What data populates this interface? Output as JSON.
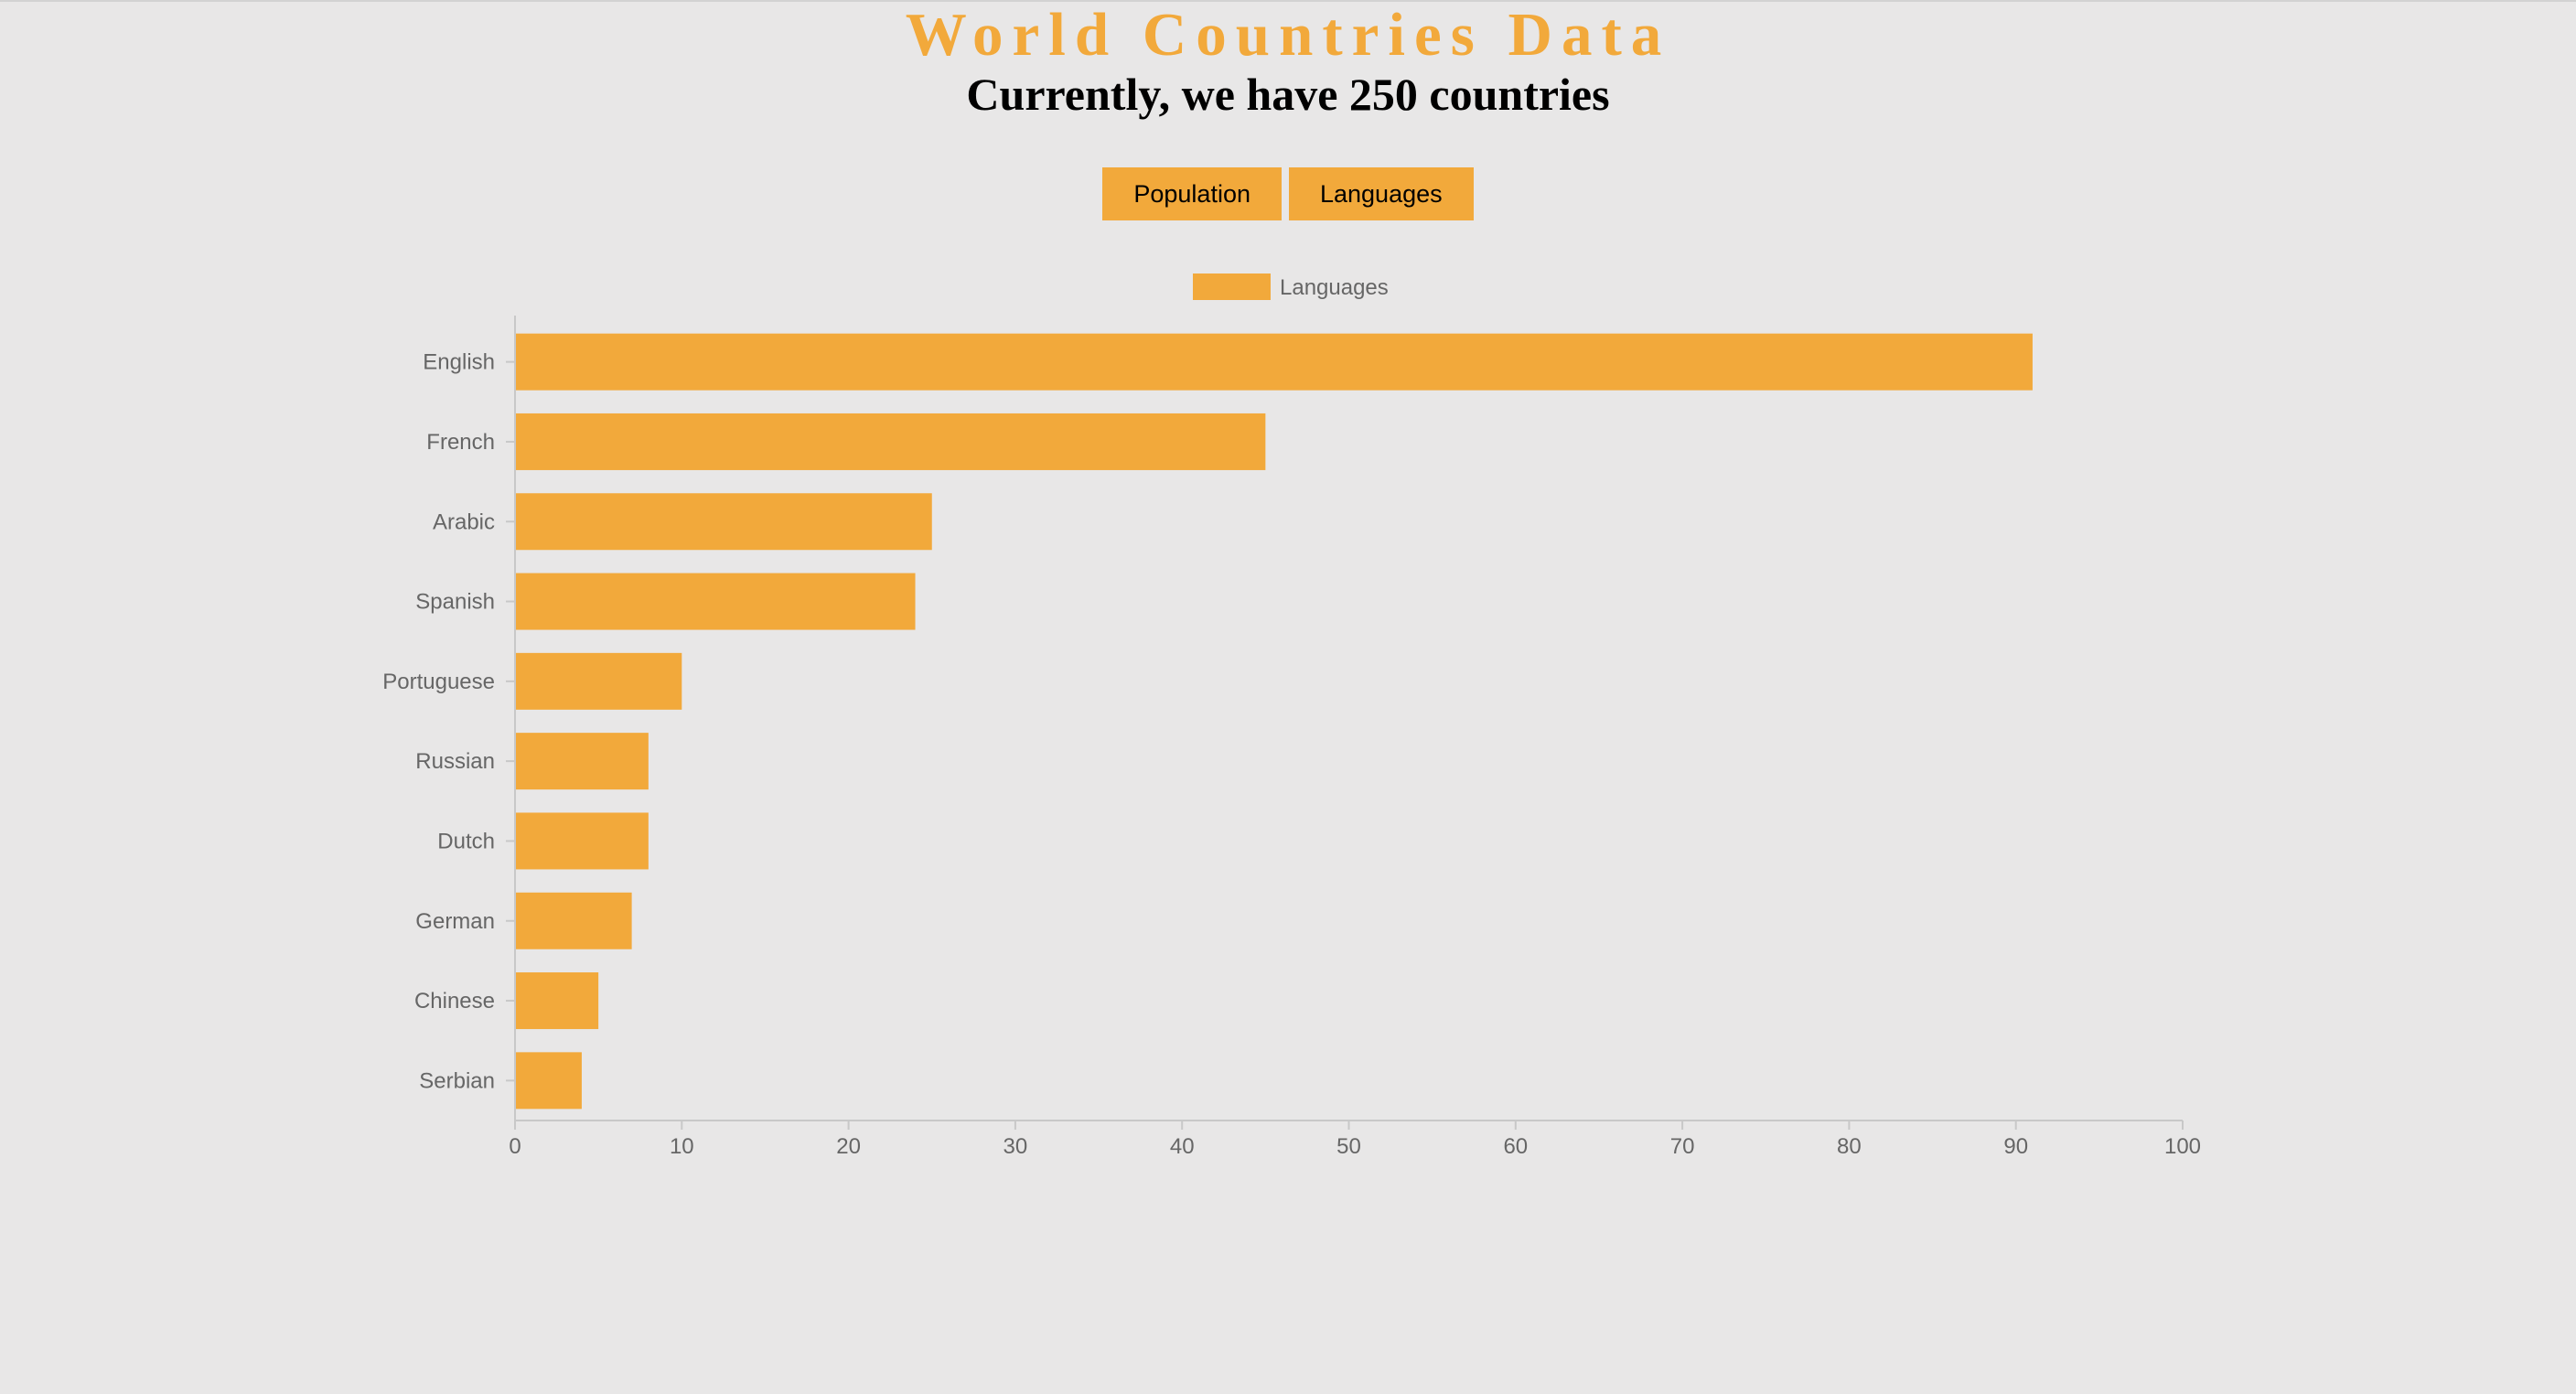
{
  "page": {
    "title": "World Countries Data",
    "subtitle": "Currently, we have 250 countries"
  },
  "buttons": {
    "population_label": "Population",
    "languages_label": "Languages"
  },
  "colors": {
    "accent": "#f2a93b",
    "background": "#e8e7e7",
    "axis_text": "#666666",
    "axis_line": "#c8c8c8"
  },
  "chart_data": {
    "type": "bar",
    "orientation": "horizontal",
    "title": "",
    "xlabel": "",
    "ylabel": "",
    "categories": [
      "English",
      "French",
      "Arabic",
      "Spanish",
      "Portuguese",
      "Russian",
      "Dutch",
      "German",
      "Chinese",
      "Serbian"
    ],
    "series": [
      {
        "name": "Languages",
        "values": [
          91,
          45,
          25,
          24,
          10,
          8,
          8,
          7,
          5,
          4
        ]
      }
    ],
    "xlim": [
      0,
      100
    ],
    "xticks": [
      0,
      10,
      20,
      30,
      40,
      50,
      60,
      70,
      80,
      90,
      100
    ],
    "grid": false,
    "legend_position": "top"
  }
}
